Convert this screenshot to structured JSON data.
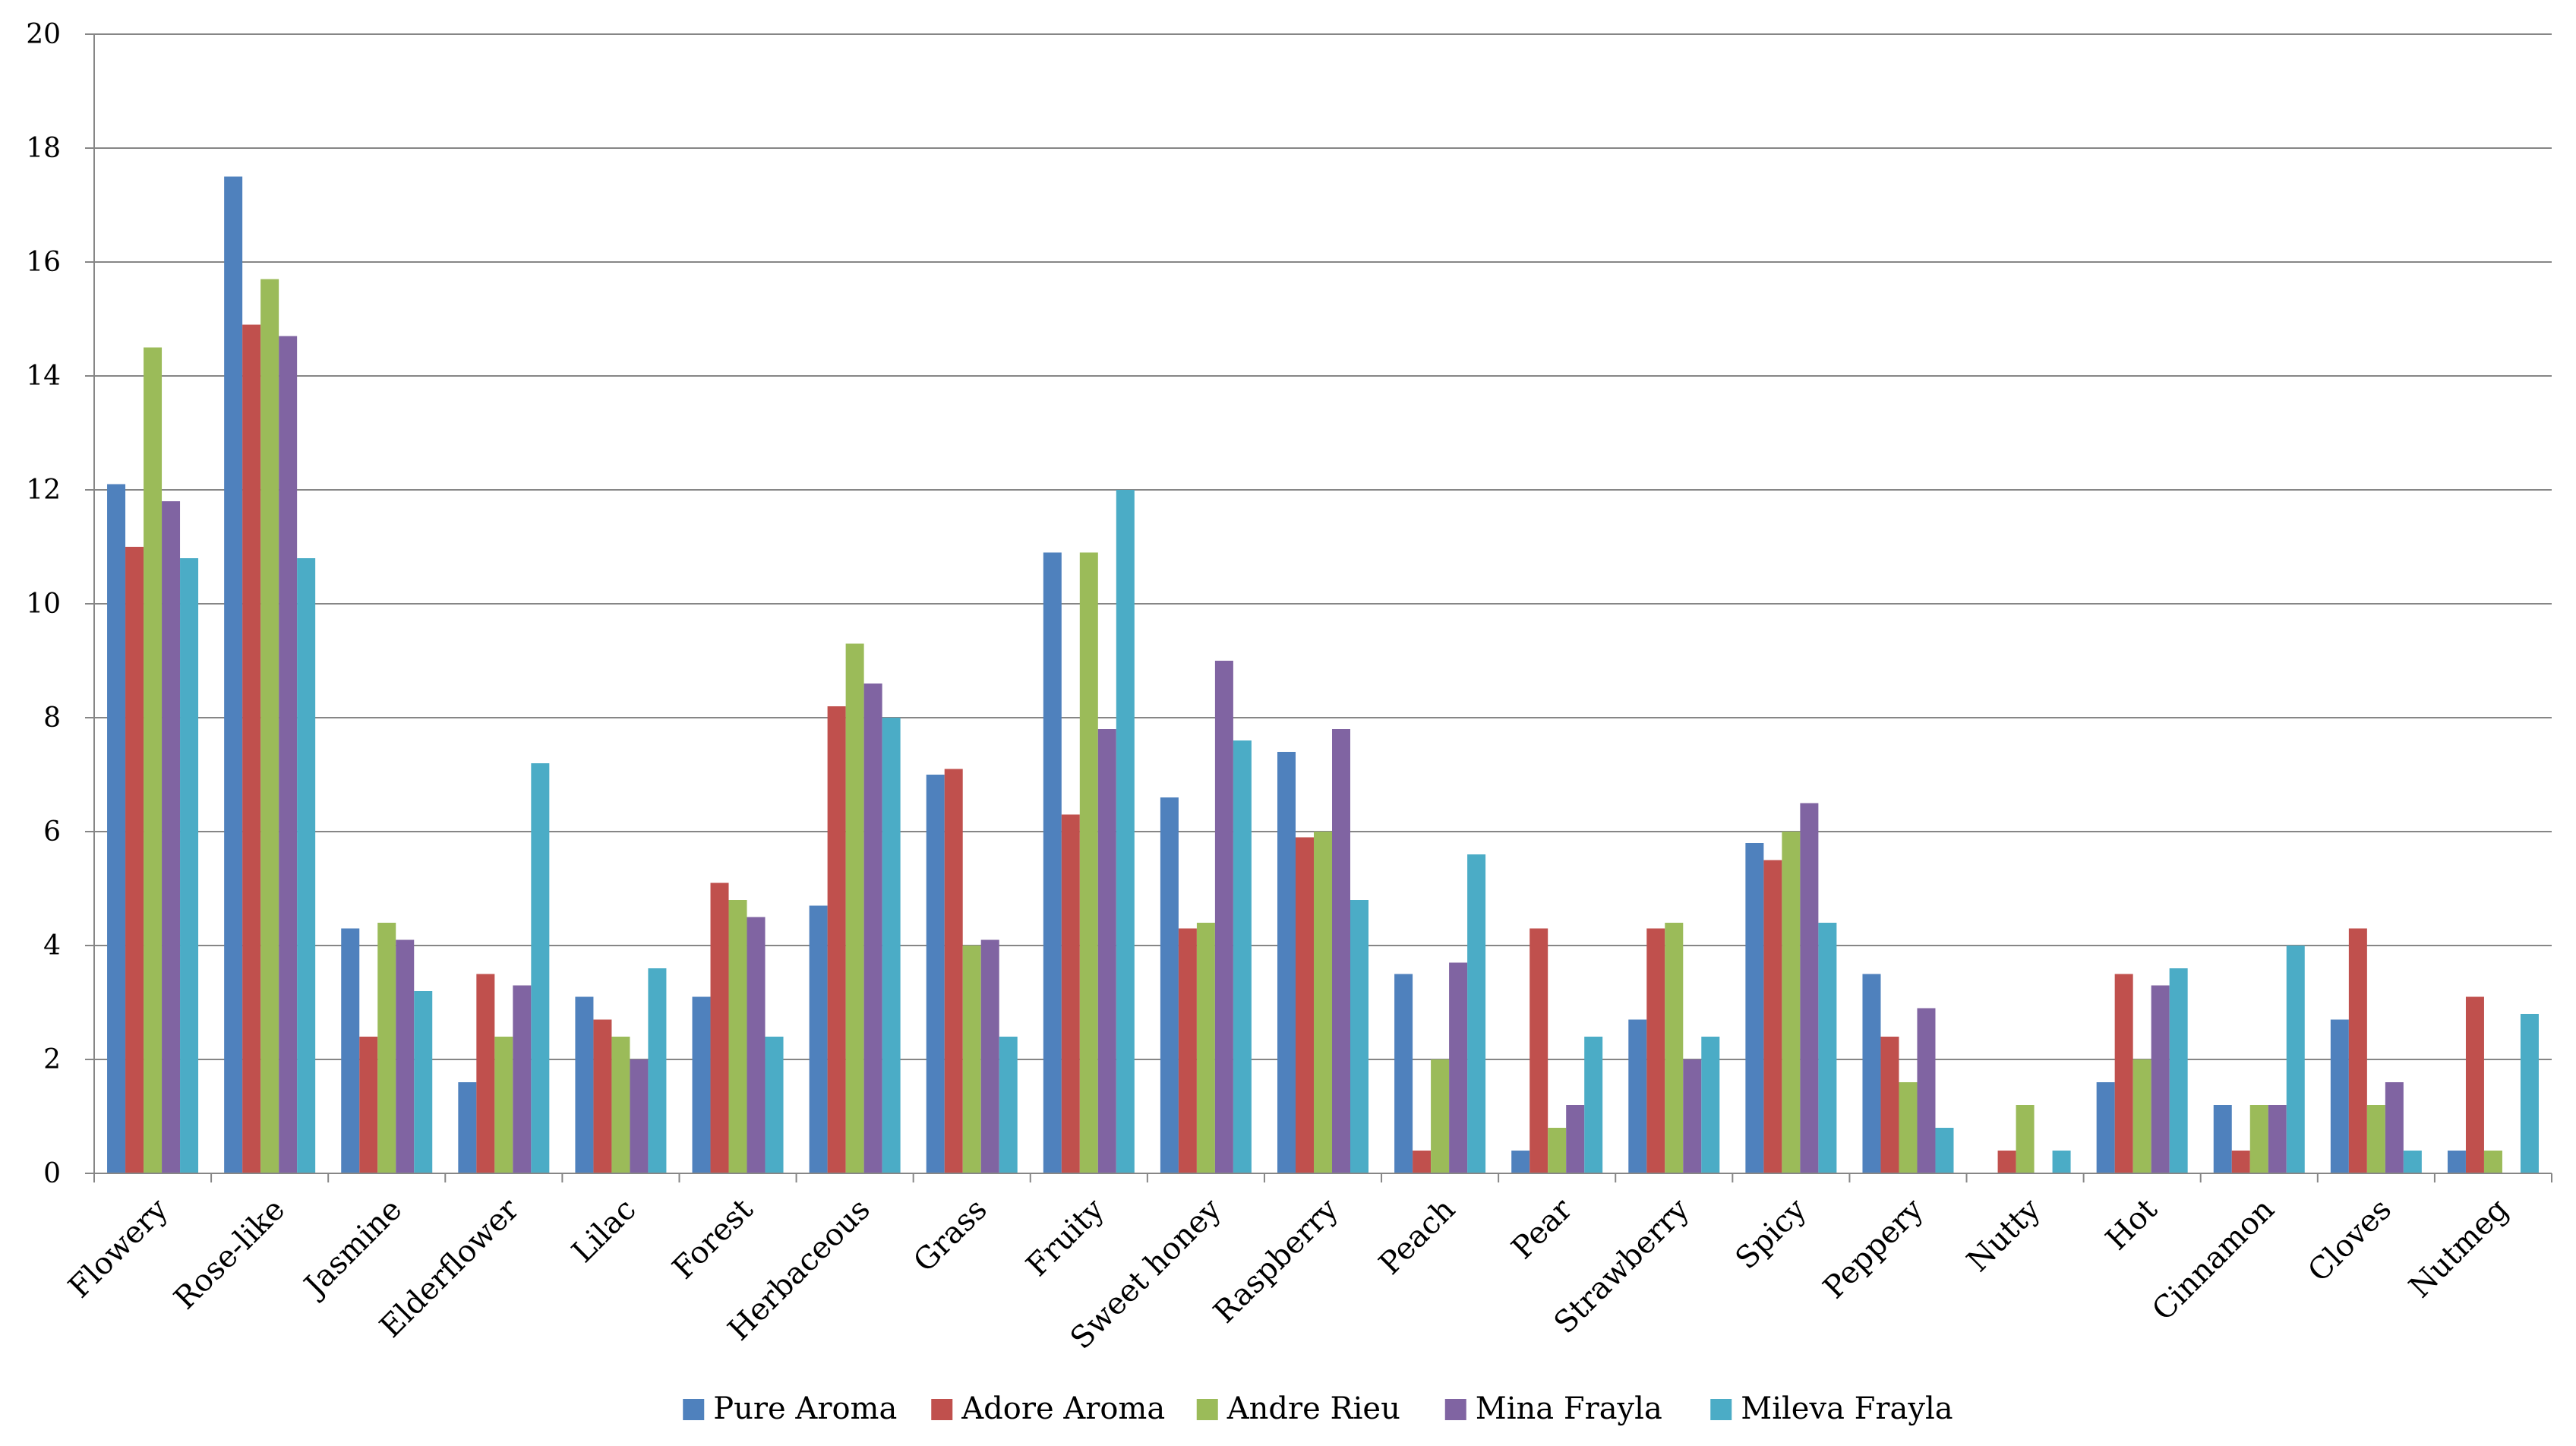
{
  "chart_data": {
    "type": "bar",
    "title": "",
    "xlabel": "",
    "ylabel": "",
    "ylim": [
      0,
      20
    ],
    "yticks": [
      "0",
      "2",
      "4",
      "6",
      "8",
      "10",
      "12",
      "14",
      "16",
      "18",
      "20"
    ],
    "grid": "horizontal",
    "legend_position": "bottom",
    "categories": [
      "Flowery",
      "Rose-like",
      "Jasmine",
      "Elderflower",
      "Lilac",
      "Forest",
      "Herbaceous",
      "Grass",
      "Fruity",
      "Sweet honey",
      "Raspberry",
      "Peach",
      "Pear",
      "Strawberry",
      "Spicy",
      "Peppery",
      "Nutty",
      "Hot",
      "Cinnamon",
      "Cloves",
      "Nutmeg"
    ],
    "series": [
      {
        "name": "Pure Aroma",
        "color": "#4F81BD",
        "values": [
          12.1,
          17.5,
          4.3,
          1.6,
          3.1,
          3.1,
          4.7,
          7.0,
          10.9,
          6.6,
          7.4,
          3.5,
          0.4,
          2.7,
          5.8,
          3.5,
          0,
          1.6,
          1.2,
          2.7,
          0.4
        ]
      },
      {
        "name": "Adore Aroma",
        "color": "#C0504D",
        "values": [
          11.0,
          14.9,
          2.4,
          3.5,
          2.7,
          5.1,
          8.2,
          7.1,
          6.3,
          4.3,
          5.9,
          0.4,
          4.3,
          4.3,
          5.5,
          2.4,
          0.4,
          3.5,
          0.4,
          4.3,
          3.1
        ]
      },
      {
        "name": "Andre Rieu",
        "color": "#9BBB59",
        "values": [
          14.5,
          15.7,
          4.4,
          2.4,
          2.4,
          4.8,
          9.3,
          4.0,
          10.9,
          4.4,
          6.0,
          2.0,
          0.8,
          4.4,
          6.0,
          1.6,
          1.2,
          2.0,
          1.2,
          1.2,
          0.4
        ]
      },
      {
        "name": "Mina Frayla",
        "color": "#8064A2",
        "values": [
          11.8,
          14.7,
          4.1,
          3.3,
          2.0,
          4.5,
          8.6,
          4.1,
          7.8,
          9.0,
          7.8,
          3.7,
          1.2,
          2.0,
          6.5,
          2.9,
          0,
          3.3,
          1.2,
          1.6,
          0
        ]
      },
      {
        "name": "Mileva Frayla",
        "color": "#4BACC6",
        "values": [
          10.8,
          10.8,
          3.2,
          7.2,
          3.6,
          2.4,
          8.0,
          2.4,
          12.0,
          7.6,
          4.8,
          5.6,
          2.4,
          2.4,
          4.4,
          0.8,
          0.4,
          3.6,
          4.0,
          0.4,
          2.8
        ]
      }
    ]
  }
}
